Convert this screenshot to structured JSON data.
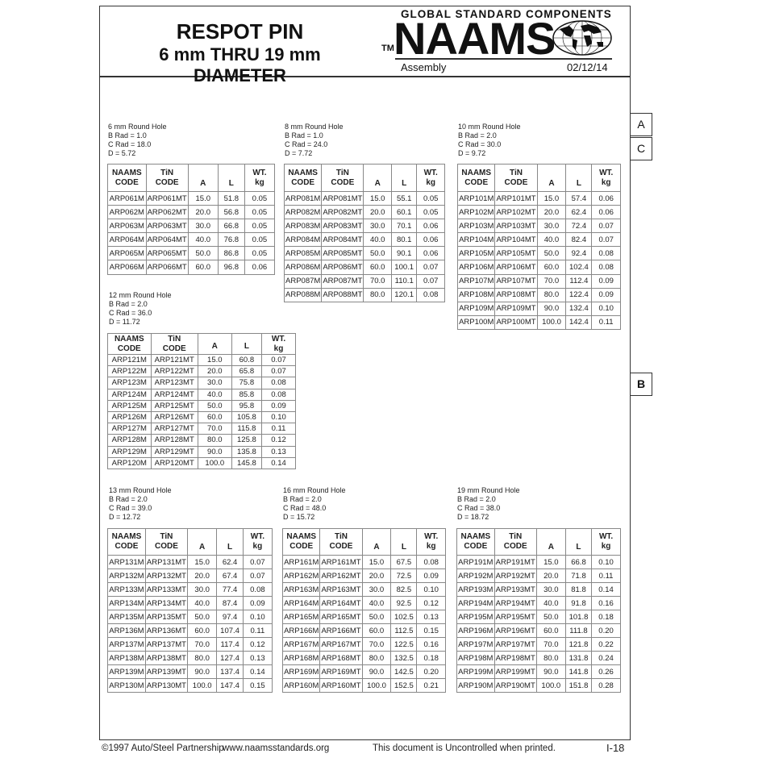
{
  "header": {
    "title": "RESPOT PIN",
    "subtitle": "6 mm THRU 19 mm DIAMETER",
    "logo_tagline": "GLOBAL STANDARD COMPONENTS",
    "logo_name": "NAAMS",
    "trademark": "TM",
    "section": "Assembly",
    "date": "02/12/14"
  },
  "side_tabs": [
    "A",
    "C",
    "B"
  ],
  "columns": [
    "NAAMS CODE",
    "TiN CODE",
    "A",
    "L",
    "WT. kg"
  ],
  "tables": [
    {
      "title": "6 mm Round Hole",
      "b_rad": "B Rad = 1.0",
      "c_rad": "C Rad = 18.0",
      "d": "D = 5.72",
      "rows": [
        [
          "ARP061M",
          "ARP061MT",
          "15.0",
          "51.8",
          "0.05"
        ],
        [
          "ARP062M",
          "ARP062MT",
          "20.0",
          "56.8",
          "0.05"
        ],
        [
          "ARP063M",
          "ARP063MT",
          "30.0",
          "66.8",
          "0.05"
        ],
        [
          "ARP064M",
          "ARP064MT",
          "40.0",
          "76.8",
          "0.05"
        ],
        [
          "ARP065M",
          "ARP065MT",
          "50.0",
          "86.8",
          "0.05"
        ],
        [
          "ARP066M",
          "ARP066MT",
          "60.0",
          "96.8",
          "0.06"
        ]
      ]
    },
    {
      "title": "8 mm Round Hole",
      "b_rad": "B Rad = 1.0",
      "c_rad": "C Rad = 24.0",
      "d": "D = 7.72",
      "rows": [
        [
          "ARP081M",
          "ARP081MT",
          "15.0",
          "55.1",
          "0.05"
        ],
        [
          "ARP082M",
          "ARP082MT",
          "20.0",
          "60.1",
          "0.05"
        ],
        [
          "ARP083M",
          "ARP083MT",
          "30.0",
          "70.1",
          "0.06"
        ],
        [
          "ARP084M",
          "ARP084MT",
          "40.0",
          "80.1",
          "0.06"
        ],
        [
          "ARP085M",
          "ARP085MT",
          "50.0",
          "90.1",
          "0.06"
        ],
        [
          "ARP086M",
          "ARP086MT",
          "60.0",
          "100.1",
          "0.07"
        ],
        [
          "ARP087M",
          "ARP087MT",
          "70.0",
          "110.1",
          "0.07"
        ],
        [
          "ARP088M",
          "ARP088MT",
          "80.0",
          "120.1",
          "0.08"
        ]
      ]
    },
    {
      "title": "10 mm Round Hole",
      "b_rad": "B Rad = 2.0",
      "c_rad": "C Rad = 30.0",
      "d": "D = 9.72",
      "rows": [
        [
          "ARP101M",
          "ARP101MT",
          "15.0",
          "57.4",
          "0.06"
        ],
        [
          "ARP102M",
          "ARP102MT",
          "20.0",
          "62.4",
          "0.06"
        ],
        [
          "ARP103M",
          "ARP103MT",
          "30.0",
          "72.4",
          "0.07"
        ],
        [
          "ARP104M",
          "ARP104MT",
          "40.0",
          "82.4",
          "0.07"
        ],
        [
          "ARP105M",
          "ARP105MT",
          "50.0",
          "92.4",
          "0.08"
        ],
        [
          "ARP106M",
          "ARP106MT",
          "60.0",
          "102.4",
          "0.08"
        ],
        [
          "ARP107M",
          "ARP107MT",
          "70.0",
          "112.4",
          "0.09"
        ],
        [
          "ARP108M",
          "ARP108MT",
          "80.0",
          "122.4",
          "0.09"
        ],
        [
          "ARP109M",
          "ARP109MT",
          "90.0",
          "132.4",
          "0.10"
        ],
        [
          "ARP100M",
          "ARP100MT",
          "100.0",
          "142.4",
          "0.11"
        ]
      ]
    },
    {
      "title": "12 mm Round Hole",
      "b_rad": "B Rad = 2.0",
      "c_rad": "C Rad = 36.0",
      "d": "D = 11.72",
      "rows": [
        [
          "ARP121M",
          "ARP121MT",
          "15.0",
          "60.8",
          "0.07"
        ],
        [
          "ARP122M",
          "ARP122MT",
          "20.0",
          "65.8",
          "0.07"
        ],
        [
          "ARP123M",
          "ARP123MT",
          "30.0",
          "75.8",
          "0.08"
        ],
        [
          "ARP124M",
          "ARP124MT",
          "40.0",
          "85.8",
          "0.08"
        ],
        [
          "ARP125M",
          "ARP125MT",
          "50.0",
          "95.8",
          "0.09"
        ],
        [
          "ARP126M",
          "ARP126MT",
          "60.0",
          "105.8",
          "0.10"
        ],
        [
          "ARP127M",
          "ARP127MT",
          "70.0",
          "115.8",
          "0.11"
        ],
        [
          "ARP128M",
          "ARP128MT",
          "80.0",
          "125.8",
          "0.12"
        ],
        [
          "ARP129M",
          "ARP129MT",
          "90.0",
          "135.8",
          "0.13"
        ],
        [
          "ARP120M",
          "ARP120MT",
          "100.0",
          "145.8",
          "0.14"
        ]
      ]
    },
    {
      "title": "13 mm Round Hole",
      "b_rad": "B Rad = 2.0",
      "c_rad": "C Rad = 39.0",
      "d": "D = 12.72",
      "rows": [
        [
          "ARP131M",
          "ARP131MT",
          "15.0",
          "62.4",
          "0.07"
        ],
        [
          "ARP132M",
          "ARP132MT",
          "20.0",
          "67.4",
          "0.07"
        ],
        [
          "ARP133M",
          "ARP133MT",
          "30.0",
          "77.4",
          "0.08"
        ],
        [
          "ARP134M",
          "ARP134MT",
          "40.0",
          "87.4",
          "0.09"
        ],
        [
          "ARP135M",
          "ARP135MT",
          "50.0",
          "97.4",
          "0.10"
        ],
        [
          "ARP136M",
          "ARP136MT",
          "60.0",
          "107.4",
          "0.11"
        ],
        [
          "ARP137M",
          "ARP137MT",
          "70.0",
          "117.4",
          "0.12"
        ],
        [
          "ARP138M",
          "ARP138MT",
          "80.0",
          "127.4",
          "0.13"
        ],
        [
          "ARP139M",
          "ARP139MT",
          "90.0",
          "137.4",
          "0.14"
        ],
        [
          "ARP130M",
          "ARP130MT",
          "100.0",
          "147.4",
          "0.15"
        ]
      ]
    },
    {
      "title": "16 mm Round Hole",
      "b_rad": "B Rad = 2.0",
      "c_rad": "C Rad = 48.0",
      "d": "D = 15.72",
      "rows": [
        [
          "ARP161M",
          "ARP161MT",
          "15.0",
          "67.5",
          "0.08"
        ],
        [
          "ARP162M",
          "ARP162MT",
          "20.0",
          "72.5",
          "0.09"
        ],
        [
          "ARP163M",
          "ARP163MT",
          "30.0",
          "82.5",
          "0.10"
        ],
        [
          "ARP164M",
          "ARP164MT",
          "40.0",
          "92.5",
          "0.12"
        ],
        [
          "ARP165M",
          "ARP165MT",
          "50.0",
          "102.5",
          "0.13"
        ],
        [
          "ARP166M",
          "ARP166MT",
          "60.0",
          "112.5",
          "0.15"
        ],
        [
          "ARP167M",
          "ARP167MT",
          "70.0",
          "122.5",
          "0.16"
        ],
        [
          "ARP168M",
          "ARP168MT",
          "80.0",
          "132.5",
          "0.18"
        ],
        [
          "ARP169M",
          "ARP169MT",
          "90.0",
          "142.5",
          "0.20"
        ],
        [
          "ARP160M",
          "ARP160MT",
          "100.0",
          "152.5",
          "0.21"
        ]
      ]
    },
    {
      "title": "19 mm Round Hole",
      "b_rad": "B Rad = 2.0",
      "c_rad": "C Rad = 38.0",
      "d": "D = 18.72",
      "rows": [
        [
          "ARP191M",
          "ARP191MT",
          "15.0",
          "66.8",
          "0.10"
        ],
        [
          "ARP192M",
          "ARP192MT",
          "20.0",
          "71.8",
          "0.11"
        ],
        [
          "ARP193M",
          "ARP193MT",
          "30.0",
          "81.8",
          "0.14"
        ],
        [
          "ARP194M",
          "ARP194MT",
          "40.0",
          "91.8",
          "0.16"
        ],
        [
          "ARP195M",
          "ARP195MT",
          "50.0",
          "101.8",
          "0.18"
        ],
        [
          "ARP196M",
          "ARP196MT",
          "60.0",
          "111.8",
          "0.20"
        ],
        [
          "ARP197M",
          "ARP197MT",
          "70.0",
          "121.8",
          "0.22"
        ],
        [
          "ARP198M",
          "ARP198MT",
          "80.0",
          "131.8",
          "0.24"
        ],
        [
          "ARP199M",
          "ARP199MT",
          "90.0",
          "141.8",
          "0.26"
        ],
        [
          "ARP190M",
          "ARP190MT",
          "100.0",
          "151.8",
          "0.28"
        ]
      ]
    }
  ],
  "footer": {
    "copyright": "©1997 Auto/Steel Partnership",
    "website": "www.naamsstandards.org",
    "notice": "This document is Uncontrolled when printed.",
    "page_number": "I-18"
  }
}
